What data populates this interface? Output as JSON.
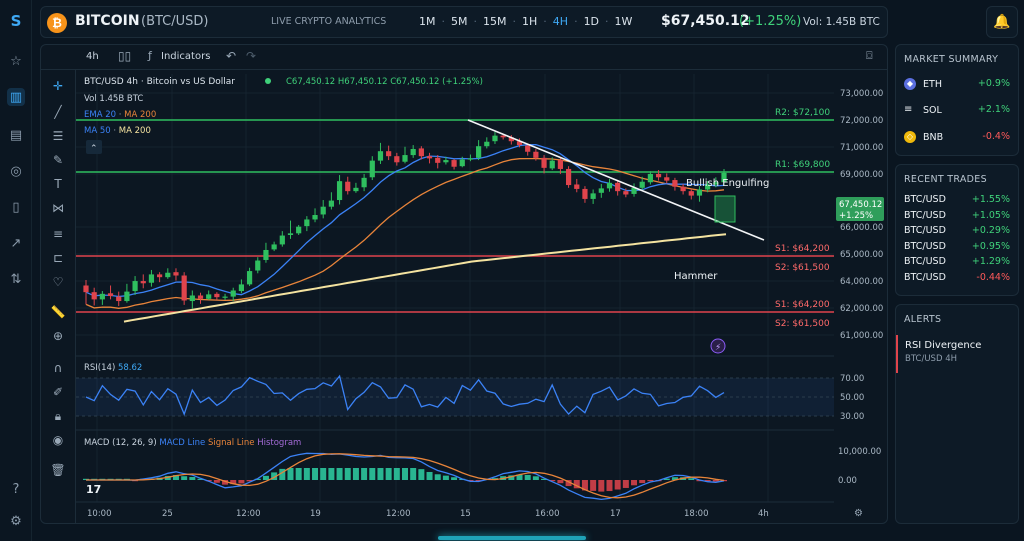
{
  "header": {
    "symbol": "BITCOIN",
    "pair": "(BTC/USD)",
    "subtitle": "LIVE CRYPTO ANALYTICS",
    "timeframes": [
      "1M",
      "5M",
      "15M",
      "1H",
      "4H",
      "1D",
      "1W"
    ],
    "active_timeframe": "4H",
    "price": "$67,450.12",
    "change": "(+1.25%)",
    "volume": "Vol: 1.45B BTC"
  },
  "toolbar": {
    "interval": "4h",
    "indicators_label": "Indicators"
  },
  "legend": {
    "title": "BTC/USD  4h · Bitcoin vs US Dollar",
    "ohlc": "C67,450.12  H67,450.12  C67,450.12 (+1.25%)",
    "vol": "Vol  1.45B BTC",
    "ema_a": "EMA 20",
    "ema_b": "MA 200",
    "ma_a": "MA 50",
    "ma_b": "MA 200"
  },
  "chart_data": {
    "type": "candlestick",
    "price_axis": [
      "73,000.00",
      "72,000.00",
      "71,000.00",
      "69,000.00",
      "66,000.00",
      "65,000.00",
      "64,000.00",
      "62,000.00",
      "61,000.00"
    ],
    "time_axis": [
      "10:00",
      "25",
      "12:00",
      "19",
      "12:00",
      "15",
      "16:00",
      "17",
      "18:00",
      "4h"
    ],
    "current_price": "67,450.12",
    "current_change": "+1.25%",
    "levels": [
      {
        "label": "R2: $72,100",
        "color": "#2fbf5f"
      },
      {
        "label": "R1: $69,800",
        "color": "#2fbf5f"
      },
      {
        "label": "S1: $64,200",
        "color": "#e0444c"
      },
      {
        "label": "S2: $61,500",
        "color": "#e0444c"
      },
      {
        "label": "S1: $64,200",
        "color": "#e0444c"
      },
      {
        "label": "S2: $61,500",
        "color": "#e0444c"
      }
    ],
    "annotations": [
      "Bullish Engulfing",
      "Hammer"
    ],
    "candles": [
      [
        40.0,
        38.8,
        41.0,
        36.6
      ],
      [
        38.8,
        37.5,
        39.6,
        36.4
      ],
      [
        37.5,
        38.5,
        39.0,
        36.5
      ],
      [
        38.6,
        38.1,
        40.0,
        37.5
      ],
      [
        38.0,
        37.2,
        38.9,
        36.3
      ],
      [
        37.2,
        38.9,
        40.3,
        36.9
      ],
      [
        39.0,
        40.8,
        41.7,
        38.3
      ],
      [
        40.8,
        40.4,
        42.0,
        39.5
      ],
      [
        40.5,
        42.0,
        42.8,
        39.8
      ],
      [
        42.0,
        41.5,
        42.4,
        40.6
      ],
      [
        41.5,
        42.3,
        43.1,
        41.2
      ],
      [
        42.4,
        41.8,
        43.1,
        40.9
      ],
      [
        41.8,
        37.3,
        42.4,
        36.5
      ],
      [
        37.2,
        38.2,
        39.1,
        35.8
      ],
      [
        38.2,
        37.6,
        38.7,
        36.7
      ],
      [
        37.6,
        38.4,
        39.1,
        37.4
      ],
      [
        38.5,
        37.9,
        38.8,
        37.4
      ],
      [
        37.9,
        38.0,
        38.5,
        37.4
      ],
      [
        38.0,
        39.1,
        39.6,
        37.2
      ],
      [
        39.0,
        40.2,
        41.1,
        38.6
      ],
      [
        40.2,
        42.6,
        43.2,
        39.9
      ],
      [
        42.7,
        44.5,
        45.1,
        42.2
      ],
      [
        44.6,
        46.4,
        47.7,
        44.1
      ],
      [
        46.5,
        47.4,
        47.9,
        46.2
      ],
      [
        47.4,
        49.0,
        49.8,
        47.0
      ],
      [
        49.1,
        49.4,
        51.7,
        48.4
      ],
      [
        49.4,
        50.6,
        50.9,
        49.1
      ],
      [
        50.7,
        51.9,
        52.5,
        49.8
      ],
      [
        51.9,
        52.7,
        53.9,
        51.4
      ],
      [
        52.8,
        54.2,
        55.4,
        52.1
      ],
      [
        54.2,
        55.3,
        56.8,
        53.7
      ],
      [
        55.4,
        58.8,
        59.9,
        54.6
      ],
      [
        58.7,
        57.0,
        59.6,
        56.4
      ],
      [
        57.0,
        57.6,
        58.5,
        56.7
      ],
      [
        57.7,
        59.4,
        60.1,
        57.0
      ],
      [
        59.5,
        62.5,
        63.3,
        59.0
      ],
      [
        62.5,
        64.2,
        65.7,
        61.9
      ],
      [
        64.2,
        63.3,
        65.2,
        62.6
      ],
      [
        63.3,
        62.2,
        63.9,
        61.6
      ],
      [
        62.3,
        63.5,
        65.0,
        62.0
      ],
      [
        63.5,
        64.6,
        65.3,
        63.0
      ],
      [
        64.7,
        63.3,
        65.1,
        62.7
      ],
      [
        63.3,
        62.9,
        63.9,
        62.0
      ],
      [
        63.0,
        62.1,
        63.5,
        61.1
      ],
      [
        62.2,
        62.6,
        63.2,
        61.8
      ],
      [
        62.6,
        61.4,
        62.8,
        60.9
      ],
      [
        61.5,
        62.7,
        63.2,
        61.3
      ],
      [
        62.7,
        62.9,
        63.6,
        62.4
      ],
      [
        63.0,
        65.1,
        66.2,
        62.6
      ],
      [
        65.1,
        65.9,
        66.7,
        64.7
      ],
      [
        66.0,
        67.0,
        67.7,
        65.5
      ],
      [
        67.0,
        66.7,
        67.3,
        66.3
      ],
      [
        66.7,
        66.0,
        67.1,
        65.4
      ],
      [
        66.0,
        65.3,
        66.5,
        64.9
      ],
      [
        65.2,
        64.1,
        65.6,
        63.4
      ],
      [
        64.1,
        63.0,
        64.6,
        62.5
      ],
      [
        63.0,
        61.2,
        63.5,
        60.2
      ],
      [
        61.1,
        62.5,
        63.1,
        60.8
      ],
      [
        62.6,
        61.0,
        63.0,
        60.1
      ],
      [
        61.0,
        58.1,
        61.5,
        57.6
      ],
      [
        58.2,
        57.4,
        59.2,
        56.8
      ],
      [
        57.4,
        55.6,
        57.9,
        54.9
      ],
      [
        55.6,
        56.6,
        57.3,
        54.7
      ],
      [
        56.7,
        57.5,
        58.3,
        55.8
      ],
      [
        57.5,
        58.5,
        59.2,
        56.9
      ],
      [
        58.5,
        57.0,
        59.0,
        56.2
      ],
      [
        57.0,
        56.4,
        57.5,
        55.9
      ],
      [
        56.5,
        57.6,
        58.4,
        56.0
      ],
      [
        57.6,
        58.7,
        59.6,
        57.1
      ],
      [
        58.6,
        60.1,
        60.6,
        58.2
      ],
      [
        60.1,
        59.5,
        60.8,
        58.9
      ],
      [
        59.5,
        58.9,
        60.2,
        58.4
      ],
      [
        59.0,
        57.8,
        59.4,
        57.1
      ],
      [
        57.8,
        57.0,
        58.3,
        56.4
      ],
      [
        57.0,
        56.2,
        57.4,
        55.5
      ],
      [
        56.2,
        57.3,
        57.9,
        55.1
      ],
      [
        57.3,
        58.2,
        58.8,
        56.8
      ],
      [
        58.2,
        58.6,
        59.5,
        57.7
      ],
      [
        58.6,
        60.3,
        61.0,
        58.1
      ]
    ]
  },
  "rsi": {
    "label": "RSI(14)",
    "value": "58.62",
    "levels": [
      "70.00",
      "50.00",
      "30.00"
    ]
  },
  "macd": {
    "label": "MACD (12, 26, 9)",
    "macd_line": "MACD Line",
    "signal_line": "Signal Line",
    "histogram": "Histogram",
    "axis": [
      "10,000.00",
      "0.00"
    ]
  },
  "market_summary": {
    "title": "MARKET SUMMARY",
    "items": [
      {
        "name": "ETH",
        "change": "+0.9%",
        "up": true
      },
      {
        "name": "SOL",
        "change": "+2.1%",
        "up": true
      },
      {
        "name": "BNB",
        "change": "-0.4%",
        "up": false
      }
    ]
  },
  "recent_trades": {
    "title": "RECENT TRADES",
    "items": [
      {
        "pair": "BTC/USD",
        "change": "+1.55%",
        "up": true
      },
      {
        "pair": "BTC/USD",
        "change": "+1.05%",
        "up": true
      },
      {
        "pair": "BTC/USD",
        "change": "+0.29%",
        "up": true
      },
      {
        "pair": "BTC/USD",
        "change": "+0.95%",
        "up": true
      },
      {
        "pair": "BTC/USD",
        "change": "+1.29%",
        "up": true
      },
      {
        "pair": "BTC/USD",
        "change": "-0.44%",
        "up": false
      }
    ]
  },
  "alerts": {
    "title": "ALERTS",
    "item_title": "RSI Divergence",
    "item_sub": "BTC/USD 4H"
  },
  "colors": {
    "up": "#2fbf5f",
    "down": "#e0444c",
    "accent": "#3fa9f5"
  }
}
